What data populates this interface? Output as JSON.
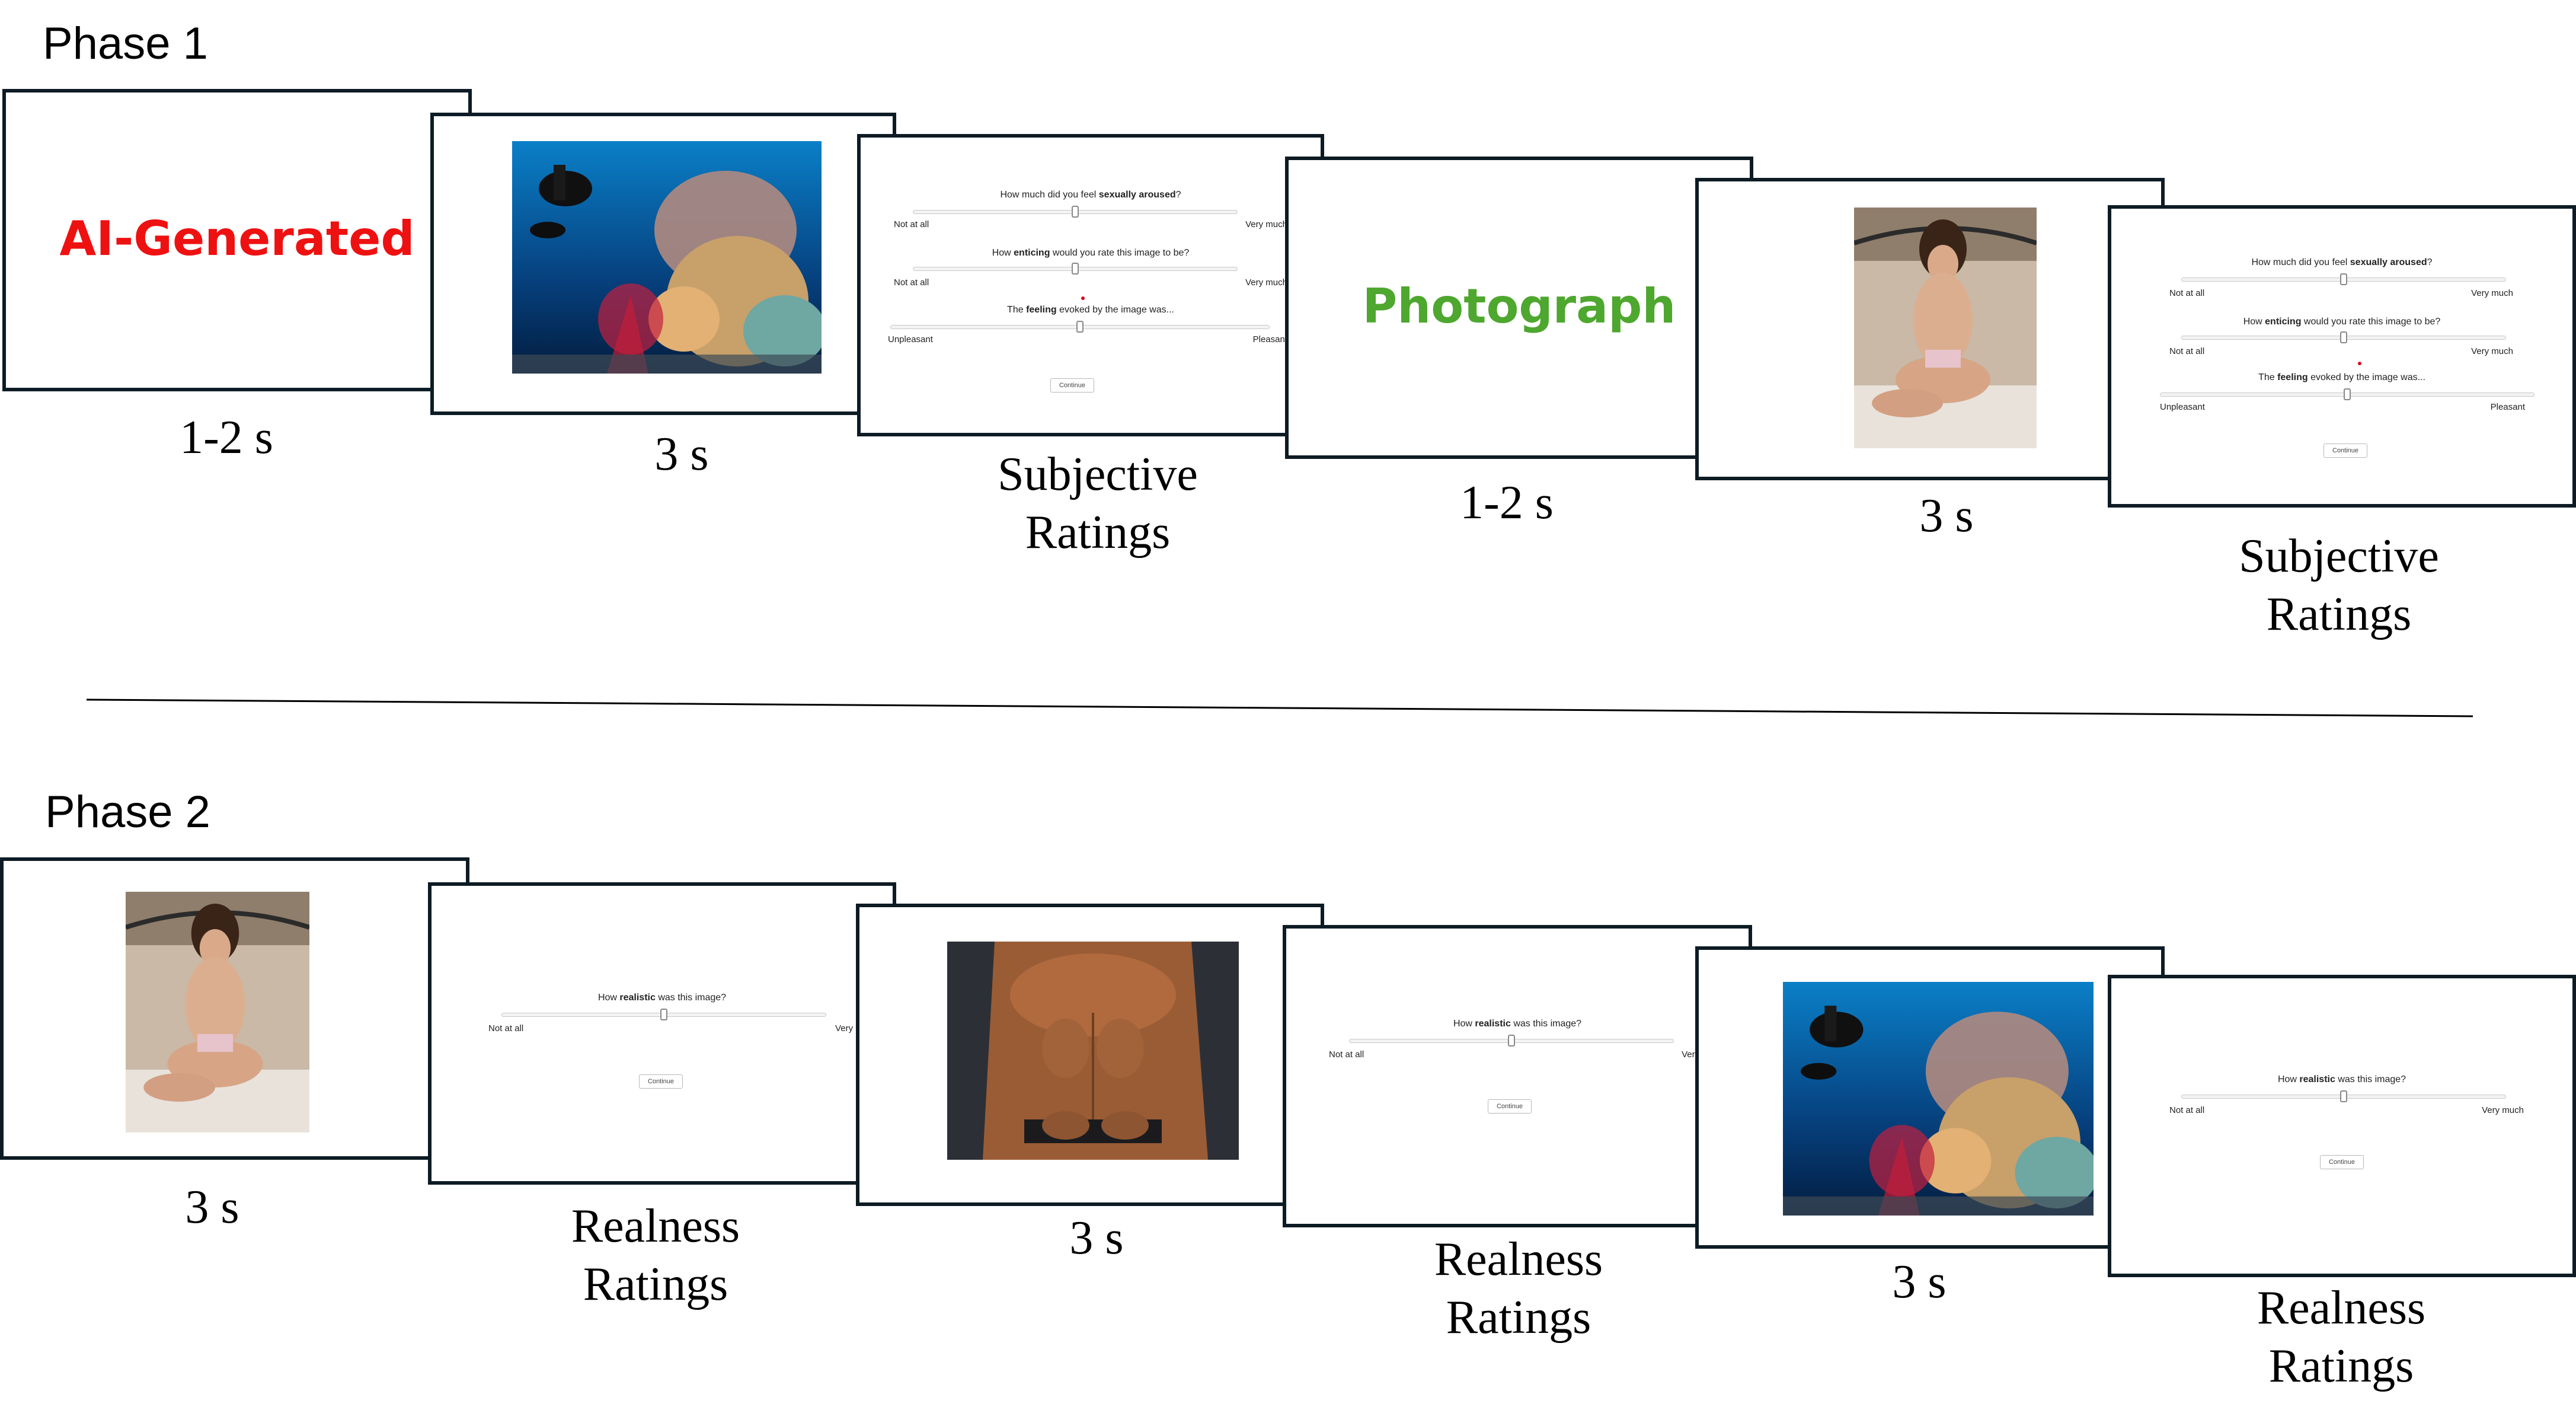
{
  "phase1": {
    "label": "Phase 1",
    "condition_ai": "AI-Generated",
    "condition_photo": "Photograph",
    "cue_duration": "1-2 s",
    "image_duration": "3 s",
    "rating_caption_line1": "Subjective",
    "rating_caption_line2": "Ratings",
    "scales": [
      {
        "pre": "How much did you feel ",
        "bold": "sexually aroused",
        "post": "?",
        "left": "Not at all",
        "right": "Very much"
      },
      {
        "pre": "How ",
        "bold": "enticing",
        "post": " would you rate this image to be?",
        "left": "Not at all",
        "right": "Very much"
      },
      {
        "pre": "The ",
        "bold": "feeling",
        "post": " evoked by the image was...",
        "left": "Unpleasant",
        "right": "Pleasant"
      }
    ],
    "button": "Continue"
  },
  "phase2": {
    "label": "Phase 2",
    "image_duration": "3 s",
    "rating_caption_line1": "Realness",
    "rating_caption_line2": "Ratings",
    "scale": {
      "pre": "How ",
      "bold": "realistic",
      "post": " was this image?",
      "left": "Not at all",
      "right": "Very much"
    },
    "button": "Continue"
  },
  "colors": {
    "ai_generated": "#ee1111",
    "photograph": "#4ea72e",
    "frame_border": "#0d1b24"
  }
}
